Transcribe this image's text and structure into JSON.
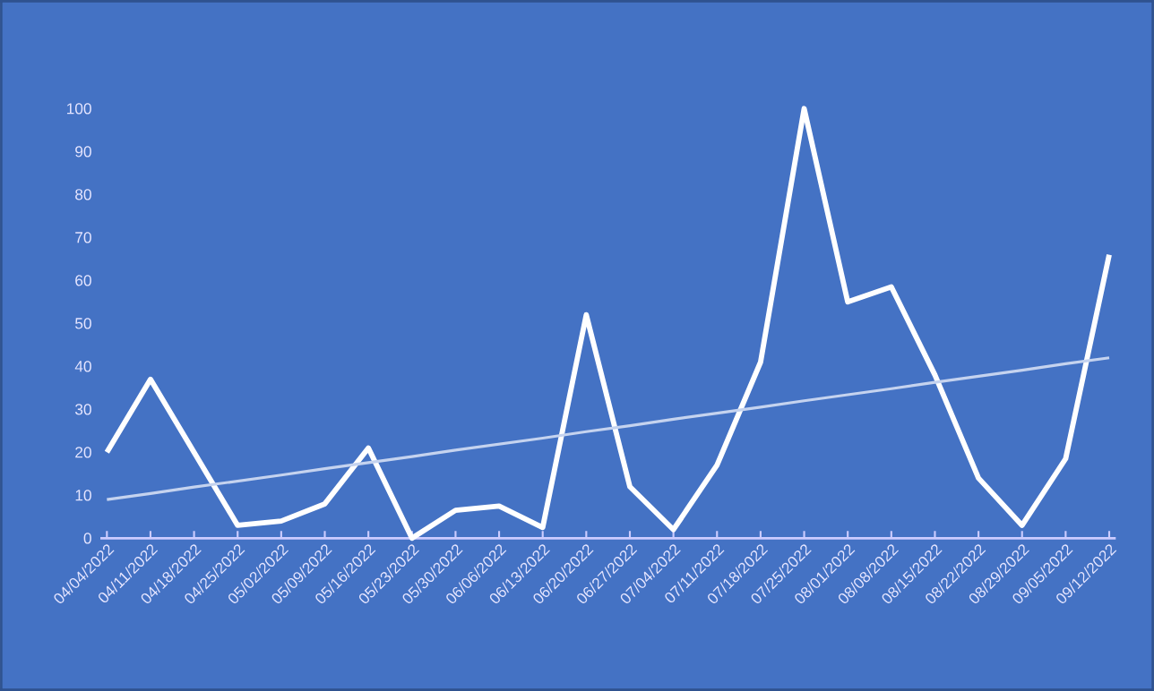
{
  "chart_data": {
    "type": "line",
    "categories": [
      "04/04/2022",
      "04/11/2022",
      "04/18/2022",
      "04/25/2022",
      "05/02/2022",
      "05/09/2022",
      "05/16/2022",
      "05/23/2022",
      "05/30/2022",
      "06/06/2022",
      "06/13/2022",
      "06/20/2022",
      "06/27/2022",
      "07/04/2022",
      "07/11/2022",
      "07/18/2022",
      "07/25/2022",
      "08/01/2022",
      "08/08/2022",
      "08/15/2022",
      "08/22/2022",
      "08/29/2022",
      "09/05/2022",
      "09/12/2022"
    ],
    "series": [
      {
        "color": "#ffffff",
        "values": [
          20,
          37,
          20,
          3,
          4,
          8,
          21,
          0,
          6.5,
          7.5,
          2.5,
          52,
          12,
          2,
          17,
          41,
          100,
          55,
          58.5,
          38,
          14,
          3,
          18.5,
          66
        ]
      },
      {
        "type": "line",
        "color": "#c5d3ef",
        "values": [
          9,
          10.4,
          11.9,
          13.3,
          14.7,
          16.2,
          17.6,
          19,
          20.5,
          21.9,
          23.3,
          24.8,
          26.2,
          27.7,
          29.1,
          30.5,
          32,
          33.4,
          34.8,
          36.3,
          37.7,
          39.1,
          40.6,
          42
        ]
      }
    ],
    "ylim": [
      0,
      100
    ],
    "yticks": [
      0,
      10,
      20,
      30,
      40,
      50,
      60,
      70,
      80,
      90,
      100
    ],
    "grid": false,
    "marker": "none",
    "line_style": "solid"
  }
}
